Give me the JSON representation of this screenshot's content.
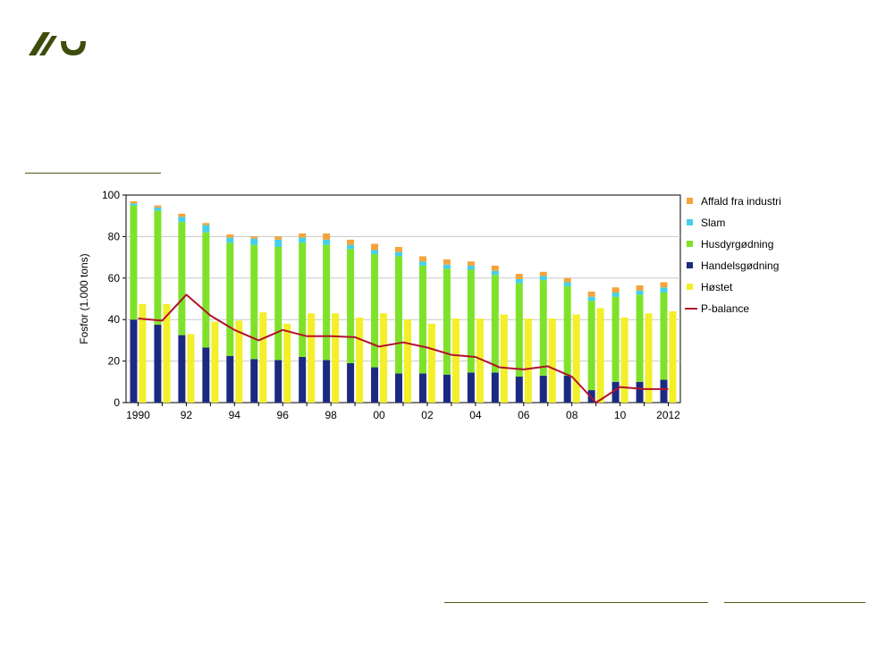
{
  "chart_data": {
    "type": "bar",
    "ylabel": "Fosfor (1.000 tons)",
    "ylim": [
      0,
      100
    ],
    "yticks": [
      0,
      20,
      40,
      60,
      80,
      100
    ],
    "years": [
      1990,
      1991,
      1992,
      1993,
      1994,
      1995,
      1996,
      1997,
      1998,
      1999,
      2000,
      2001,
      2002,
      2003,
      2004,
      2005,
      2006,
      2007,
      2008,
      2009,
      2010,
      2011,
      2012
    ],
    "xtick_labels": [
      "1990",
      "",
      "92",
      "",
      "94",
      "",
      "96",
      "",
      "98",
      "",
      "00",
      "",
      "02",
      "",
      "04",
      "",
      "06",
      "",
      "08",
      "",
      "10",
      "",
      "2012"
    ],
    "stack_series": [
      {
        "name": "Handelsgødning",
        "color": "#1b2a80",
        "values": [
          40,
          37.5,
          32.5,
          26.5,
          22.5,
          21,
          20.5,
          22,
          20.5,
          19,
          17,
          14,
          14,
          13.5,
          14.5,
          14.5,
          12.5,
          13,
          13,
          6,
          10,
          10,
          11
        ]
      },
      {
        "name": "Husdyrgødning",
        "color": "#7fe22a",
        "values": [
          55,
          55,
          54.5,
          55.5,
          54.5,
          55,
          54.5,
          55,
          55.5,
          55,
          54.5,
          56.5,
          52,
          51,
          49.5,
          47,
          45,
          46,
          43,
          43,
          41,
          42,
          42
        ]
      },
      {
        "name": "Slam",
        "color": "#45cfe9",
        "values": [
          1,
          1.5,
          2.5,
          3.5,
          2.5,
          3,
          3.5,
          2.5,
          2.5,
          2,
          2,
          2,
          2,
          2,
          2,
          2,
          2,
          2,
          2,
          2,
          2,
          2,
          2.5
        ]
      },
      {
        "name": "Affald fra industri",
        "color": "#f4a43a",
        "values": [
          1,
          1,
          1.5,
          1,
          1.5,
          1,
          1.5,
          2,
          3,
          2.5,
          3,
          2.5,
          2.5,
          2.5,
          2,
          2.5,
          2.5,
          2,
          2,
          2.5,
          2.5,
          2.5,
          2.5
        ]
      }
    ],
    "harvest_series": {
      "name": "Høstet",
      "color": "#f3ef2a",
      "values": [
        47.5,
        47.5,
        33,
        39,
        39.5,
        43.5,
        38,
        43,
        43,
        41,
        43,
        40,
        38,
        40.5,
        40.5,
        42.5,
        40.5,
        40.5,
        42.5,
        45.5,
        41,
        43,
        44
      ]
    },
    "line_series": {
      "name": "P-balance",
      "color": "#b3112c",
      "values": [
        40.5,
        39.5,
        52,
        42,
        35,
        30,
        35,
        32,
        32,
        31.5,
        27,
        29,
        26.5,
        23,
        22,
        17,
        16,
        17.5,
        12.5,
        0,
        7.5,
        6.5,
        6.5
      ]
    },
    "legend": [
      {
        "label": "Affald fra industri",
        "kind": "square",
        "color": "#f4a43a"
      },
      {
        "label": "Slam",
        "kind": "square",
        "color": "#45cfe9"
      },
      {
        "label": "Husdyrgødning",
        "kind": "square",
        "color": "#7fe22a"
      },
      {
        "label": "Handelsgødning",
        "kind": "square",
        "color": "#1b2a80"
      },
      {
        "label": "Høstet",
        "kind": "square",
        "color": "#f3ef2a"
      },
      {
        "label": "P-balance",
        "kind": "line",
        "color": "#b3112c"
      }
    ]
  }
}
